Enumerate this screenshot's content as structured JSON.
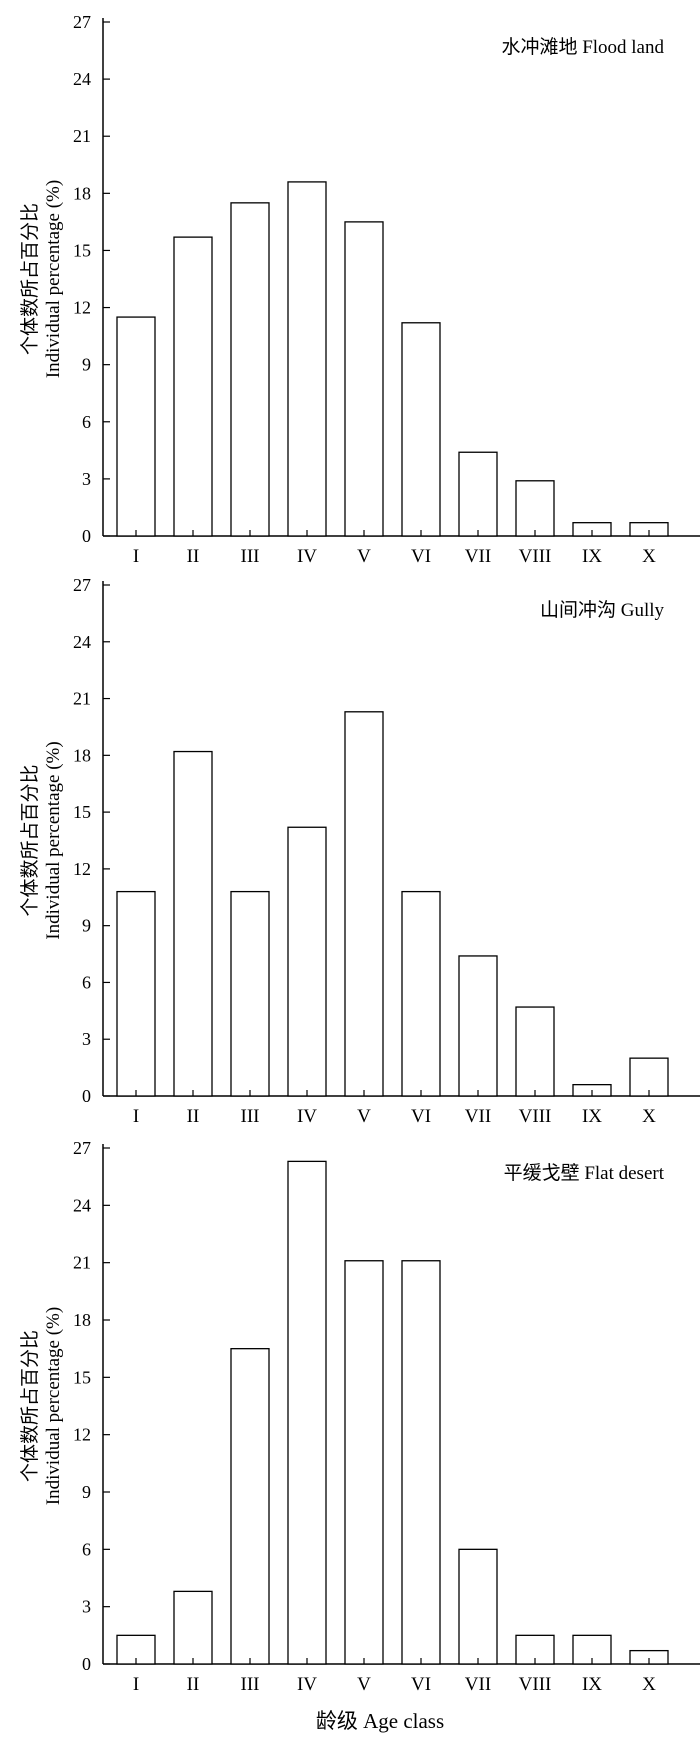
{
  "figure": {
    "xlabel": "龄级 Age class"
  },
  "chart_data": [
    {
      "type": "bar",
      "title": "水冲滩地 Flood land",
      "ylabel_cn": "个体数所占百分比",
      "ylabel_en": "Individual percentage (%)",
      "categories": [
        "I",
        "II",
        "III",
        "IV",
        "V",
        "VI",
        "VII",
        "VIII",
        "IX",
        "X"
      ],
      "values": [
        11.5,
        15.7,
        17.5,
        18.6,
        16.5,
        11.2,
        4.4,
        2.9,
        0.7,
        0.7
      ],
      "ylim": [
        0,
        27
      ],
      "yticks": [
        0,
        3,
        6,
        9,
        12,
        15,
        18,
        21,
        24,
        27
      ]
    },
    {
      "type": "bar",
      "title": "山间冲沟 Gully",
      "ylabel_cn": "个体数所占百分比",
      "ylabel_en": "Individual percentage (%)",
      "categories": [
        "I",
        "II",
        "III",
        "IV",
        "V",
        "VI",
        "VII",
        "VIII",
        "IX",
        "X"
      ],
      "values": [
        10.8,
        18.2,
        10.8,
        14.2,
        20.3,
        10.8,
        7.4,
        4.7,
        0.6,
        2.0
      ],
      "ylim": [
        0,
        27
      ],
      "yticks": [
        0,
        3,
        6,
        9,
        12,
        15,
        18,
        21,
        24,
        27
      ]
    },
    {
      "type": "bar",
      "title": "平缓戈壁 Flat desert",
      "ylabel_cn": "个体数所占百分比",
      "ylabel_en": "Individual percentage (%)",
      "categories": [
        "I",
        "II",
        "III",
        "IV",
        "V",
        "VI",
        "VII",
        "VIII",
        "IX",
        "X"
      ],
      "values": [
        1.5,
        3.8,
        16.5,
        26.3,
        21.1,
        21.1,
        6.0,
        1.5,
        1.5,
        0.7
      ],
      "ylim": [
        0,
        27
      ],
      "yticks": [
        0,
        3,
        6,
        9,
        12,
        15,
        18,
        21,
        24,
        27
      ]
    }
  ]
}
